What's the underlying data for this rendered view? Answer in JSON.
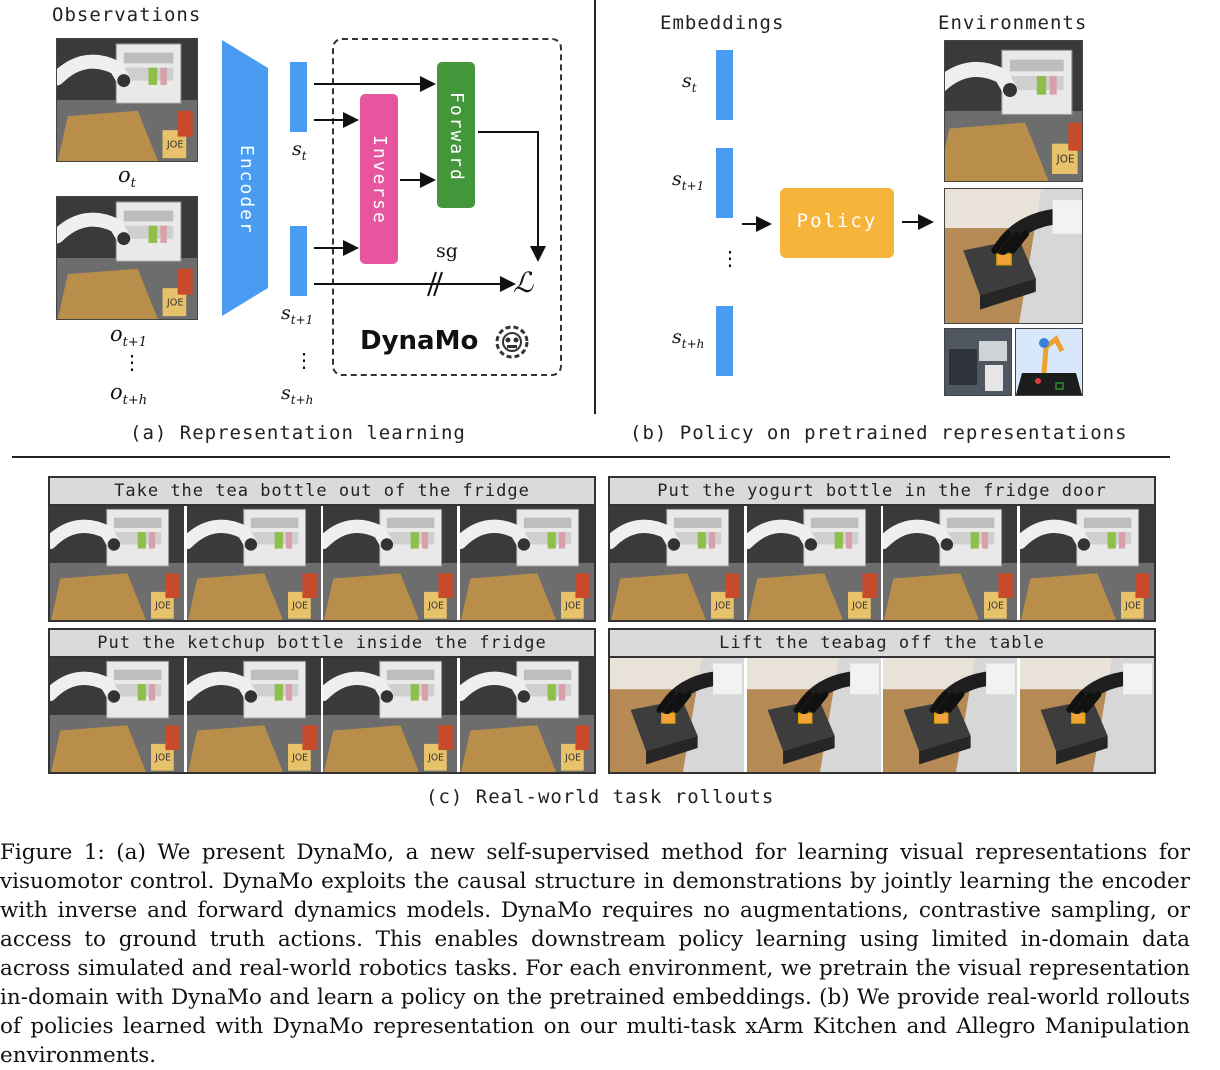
{
  "panel_a": {
    "observations_label": "Observations",
    "obs_labels": [
      "o",
      "t",
      "o",
      "t+1",
      "⋮",
      "o",
      "t+h"
    ],
    "encoder_label": "Encoder",
    "state_labels": [
      "s",
      "t",
      "s",
      "t+1",
      "⋮",
      "s",
      "t+h"
    ],
    "inverse_label": "Inverse",
    "forward_label": "Forward",
    "sg_label": "sg",
    "loss_label": "ℒ",
    "dynamo_label": "DynaMo",
    "caption": "(a) Representation learning"
  },
  "panel_b": {
    "embeddings_label": "Embeddings",
    "environments_label": "Environments",
    "emb_labels": [
      "s",
      "t",
      "s",
      "t+1",
      "⋮",
      "s",
      "t+h"
    ],
    "policy_label": "Policy",
    "caption": "(b) Policy on pretrained representations"
  },
  "panel_c": {
    "tasks": [
      "Take the tea bottle out of the fridge",
      "Put the yogurt bottle in the fridge door",
      "Put the ketchup bottle inside the fridge",
      "Lift the teabag off the table"
    ],
    "caption": "(c) Real-world task rollouts"
  },
  "figure_caption": "Figure 1: (a) We present DynaMo, a new self-supervised method for learning visual representations for visuomotor control. DynaMo exploits the causal structure in demonstrations by jointly learning the encoder with inverse and forward dynamics models. DynaMo requires no augmentations, contrastive sampling, or access to ground truth actions. This enables downstream policy learning using limited in-domain data across simulated and real-world robotics tasks. For each environment, we pretrain the visual representation in-domain with DynaMo and learn a policy on the pretrained embeddings. (b) We provide real-world rollouts of policies learned with DynaMo representation on our multi-task xArm Kitchen and Allegro Manipulation environments.",
  "colors": {
    "encoder": "#4a9cf2",
    "inverse": "#e8559f",
    "forward": "#43963a",
    "policy": "#f6b43a"
  }
}
